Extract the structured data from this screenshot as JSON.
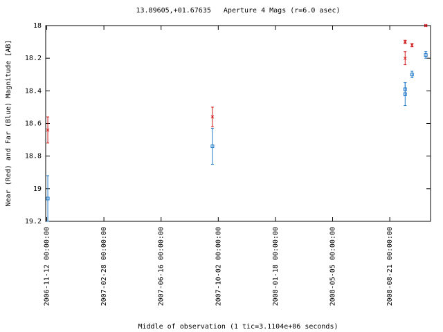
{
  "chart_data": {
    "type": "errorbar",
    "title": "13.89605,+01.67635   Aperture 4 Mags (r=6.0 asec)",
    "x_label": "Middle of observation (1 tic=3.1104e+06 seconds)",
    "y_label": "Near (Red) and Far (Blue) Magnitude [AB]",
    "xlim": [
      "2006-11-10 00:00:00",
      "2008-11-06 00:00:00"
    ],
    "xticks": [
      "2006-11-12 00:00:00",
      "2007-02-28 00:00:00",
      "2007-06-16 00:00:00",
      "2007-10-02 00:00:00",
      "2008-01-18 00:00:00",
      "2008-05-05 00:00:00",
      "2008-08-21 00:00:00"
    ],
    "ylim": [
      19.2,
      18
    ],
    "yticks": [
      18,
      18.2,
      18.4,
      18.6,
      18.8,
      19,
      19.2
    ],
    "grid": false,
    "series": [
      {
        "color": "#d01818",
        "marker": "x",
        "x": [
          "2006-11-14",
          "2007-09-21",
          "2008-09-19",
          "2008-09-19",
          "2008-10-02",
          "2008-10-28"
        ],
        "values": [
          18.64,
          18.56,
          18.1,
          18.2,
          18.12,
          18.0
        ],
        "errors": [
          0.08,
          0.06,
          0.01,
          0.04,
          0.01,
          0.005
        ]
      },
      {
        "color": "#1e78c8",
        "marker": "square",
        "x": [
          "2006-11-14",
          "2007-09-21",
          "2008-09-19",
          "2008-09-19",
          "2008-10-02",
          "2008-10-28"
        ],
        "values": [
          19.06,
          18.74,
          18.39,
          18.42,
          18.3,
          18.18
        ],
        "errors": [
          0.14,
          0.11,
          0.04,
          0.07,
          0.02,
          0.02
        ]
      }
    ]
  }
}
